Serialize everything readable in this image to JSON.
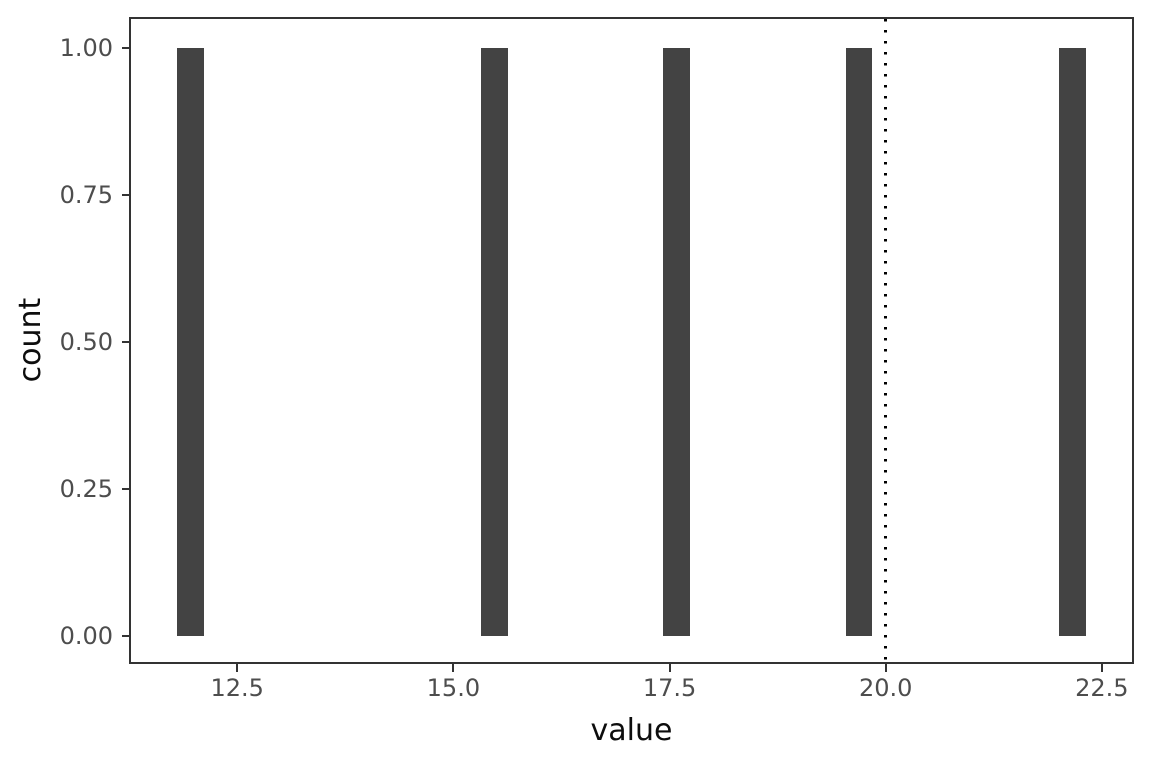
{
  "figure": {
    "background": "#ffffff"
  },
  "chart_data": {
    "type": "bar",
    "subtype": "histogram",
    "title": "",
    "xlabel": "value",
    "ylabel": "count",
    "xlim": [
      11.26,
      22.86
    ],
    "ylim": [
      -0.046,
      1.051
    ],
    "grid": "off",
    "legend": "none",
    "x_ticks": {
      "values": [
        12.5,
        15.0,
        17.5,
        20.0,
        22.5
      ],
      "labels": [
        "12.5",
        "15.0",
        "17.5",
        "20.0",
        "22.5"
      ]
    },
    "y_ticks": {
      "values": [
        0.0,
        0.25,
        0.5,
        0.75,
        1.0
      ],
      "labels": [
        "0.00",
        "0.25",
        "0.50",
        "0.75",
        "1.00"
      ]
    },
    "bars": [
      {
        "x": 11.96,
        "count": 1
      },
      {
        "x": 15.48,
        "count": 1
      },
      {
        "x": 17.58,
        "count": 1
      },
      {
        "x": 19.69,
        "count": 1
      },
      {
        "x": 22.16,
        "count": 1
      }
    ],
    "binwidth": 0.31,
    "vline": {
      "x": 20.0,
      "linetype": "dotted"
    },
    "colors": {
      "bar_fill": "#434343",
      "panel_border": "#333333",
      "tick_mark": "#333333",
      "tick_label": "#4d4d4d",
      "axis_title": "#0d0d0d",
      "vline": "#000000",
      "background": "#ffffff"
    }
  }
}
